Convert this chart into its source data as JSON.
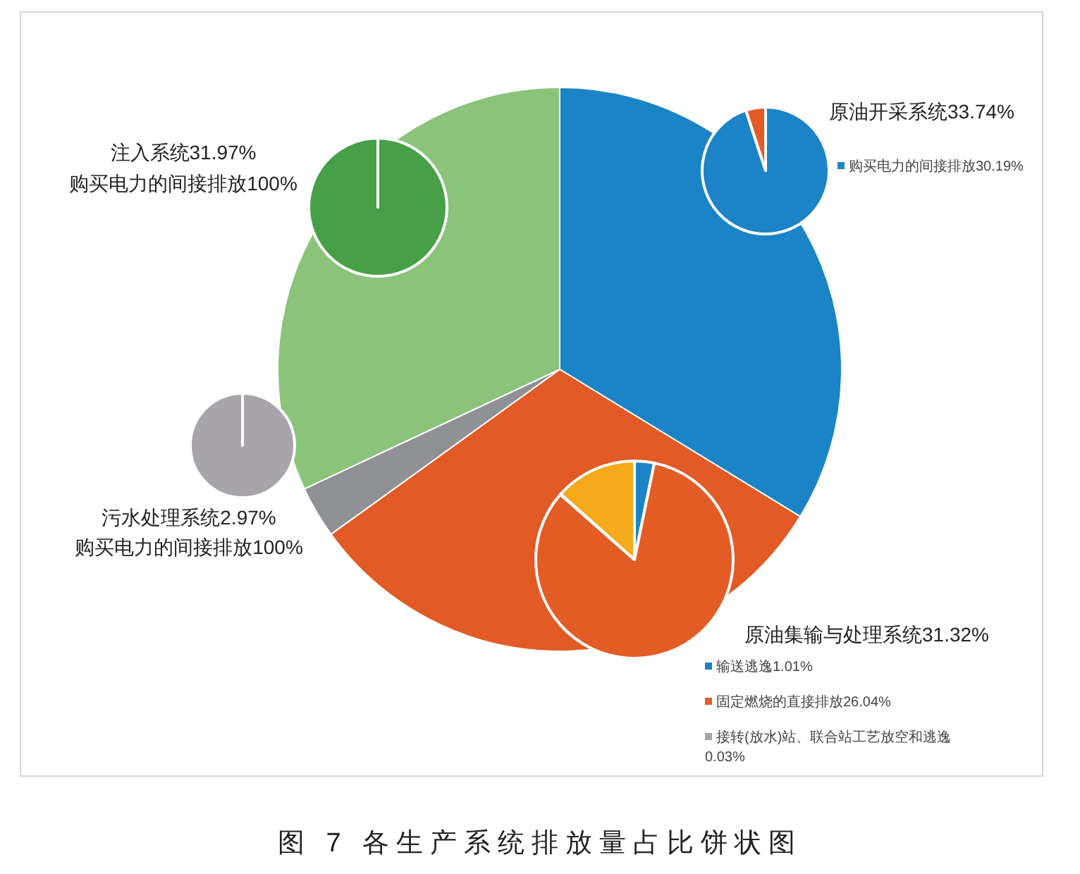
{
  "chart_data": [
    {
      "type": "pie",
      "title": "图 7 各生产系统排放量占比饼状图",
      "categories": [
        "原油开采系统",
        "原油集输与处理系统",
        "污水处理系统",
        "注入系统"
      ],
      "values": [
        33.74,
        31.32,
        2.97,
        31.97
      ],
      "value_labels": [
        "33.74%",
        "31.32%",
        "2.97%",
        "31.97%"
      ],
      "colors": [
        "#1b84c6",
        "#e25a26",
        "#8f9195",
        "#8bc37b"
      ]
    },
    {
      "type": "pie",
      "categories": [
        "购买电力的间接排放",
        null
      ],
      "values": [
        30.19,
        1.6
      ],
      "value_labels": [
        "30.19%",
        null
      ],
      "colors": [
        "#1c84c6",
        "#e35c26"
      ],
      "legend": "right"
    },
    {
      "type": "pie",
      "categories": [
        "输送逃逸",
        "固定燃烧的直接排放",
        "接转(放水)站、联合站工艺放空和逃逸",
        null
      ],
      "values": [
        1.01,
        26.04,
        0.03,
        4.2
      ],
      "value_labels": [
        "1.01%",
        "26.04%",
        "0.03%",
        null
      ],
      "colors": [
        "#1c84c6",
        "#e35c26",
        "#a5a5a5",
        "#f5aa1c"
      ],
      "legend": "bottom right"
    },
    {
      "type": "pie",
      "categories": [
        "购买电力的间接排放"
      ],
      "values": [
        100
      ],
      "value_labels": [
        "100%"
      ],
      "colors": [
        "#a7a5a9"
      ]
    },
    {
      "type": "pie",
      "categories": [
        "购买电力的间接排放"
      ],
      "values": [
        100
      ],
      "value_labels": [
        "100%"
      ],
      "colors": [
        "#47a047"
      ]
    }
  ]
}
